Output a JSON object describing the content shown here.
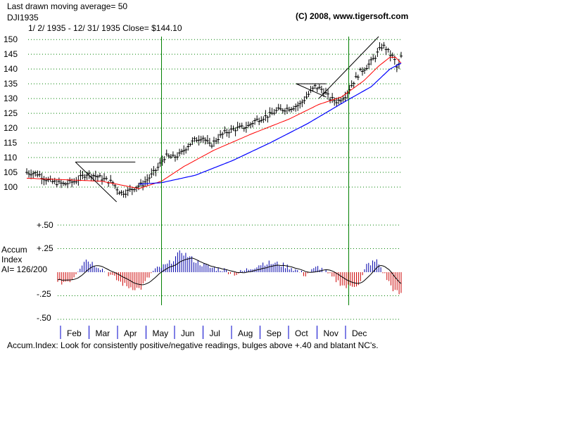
{
  "header": {
    "line1": "Last drawn moving average= 50",
    "line2": "DJI1935",
    "line3": "1/ 2/ 1935 -  12/ 31/ 1935   Close= $144.10",
    "copyright": "(C) 2008, www.tigersoft.com"
  },
  "accum_panel": {
    "label_line1": "Accum",
    "label_line2": "Index",
    "label_line3": "AI= 126/200",
    "y_ticks": [
      "+.50",
      "+.25",
      "-.25",
      "-.50"
    ]
  },
  "footer_note": "Accum.Index: Look for consistently positive/negative readings, bulges above +.40 and blatant NC's.",
  "colors": {
    "bars": "#000000",
    "ma_fast": "#ff0000",
    "ma_slow": "#0000ff",
    "signal_line": "#008000",
    "grid": "#008000",
    "ai_positive": "#0000aa",
    "ai_negative": "#cc0000"
  },
  "chart_data": [
    {
      "type": "ohlc",
      "title": "DJI1935",
      "x_months": [
        "Feb",
        "Mar",
        "Apr",
        "May",
        "Jun",
        "Jul",
        "Aug",
        "Sep",
        "Oct",
        "Nov",
        "Dec"
      ],
      "y_ticks": [
        100,
        105,
        110,
        115,
        120,
        125,
        130,
        135,
        140,
        145,
        150
      ],
      "ylim": [
        95,
        151
      ],
      "grid": true,
      "close": 144.1,
      "price_path": [
        [
          0,
          105
        ],
        [
          0.03,
          104.5
        ],
        [
          0.06,
          102
        ],
        [
          0.1,
          101
        ],
        [
          0.13,
          102
        ],
        [
          0.16,
          104.5
        ],
        [
          0.18,
          104
        ],
        [
          0.21,
          102.5
        ],
        [
          0.23,
          101.5
        ],
        [
          0.25,
          98
        ],
        [
          0.27,
          98.5
        ],
        [
          0.29,
          100
        ],
        [
          0.31,
          101
        ],
        [
          0.33,
          103.5
        ],
        [
          0.35,
          106.5
        ],
        [
          0.37,
          110.5
        ],
        [
          0.39,
          110
        ],
        [
          0.41,
          111
        ],
        [
          0.43,
          114
        ],
        [
          0.45,
          116
        ],
        [
          0.47,
          117
        ],
        [
          0.49,
          114
        ],
        [
          0.51,
          116.5
        ],
        [
          0.53,
          118.5
        ],
        [
          0.55,
          119.5
        ],
        [
          0.57,
          120
        ],
        [
          0.59,
          120.5
        ],
        [
          0.61,
          122.5
        ],
        [
          0.63,
          123.5
        ],
        [
          0.65,
          124.5
        ],
        [
          0.67,
          126
        ],
        [
          0.69,
          126.5
        ],
        [
          0.71,
          127
        ],
        [
          0.73,
          128
        ],
        [
          0.75,
          131
        ],
        [
          0.77,
          134
        ],
        [
          0.79,
          133
        ],
        [
          0.81,
          130
        ],
        [
          0.83,
          129
        ],
        [
          0.85,
          131
        ],
        [
          0.87,
          135
        ],
        [
          0.89,
          139
        ],
        [
          0.91,
          141
        ],
        [
          0.93,
          144
        ],
        [
          0.95,
          148
        ],
        [
          0.96,
          147
        ],
        [
          0.97,
          145
        ],
        [
          0.98,
          144
        ],
        [
          0.985,
          142
        ],
        [
          0.99,
          140
        ],
        [
          0.995,
          141.5
        ],
        [
          1.0,
          144.1
        ]
      ],
      "ma_fast_path": [
        [
          0,
          103
        ],
        [
          0.1,
          102.5
        ],
        [
          0.2,
          102
        ],
        [
          0.3,
          99.5
        ],
        [
          0.36,
          102
        ],
        [
          0.42,
          107
        ],
        [
          0.5,
          112.5
        ],
        [
          0.6,
          118
        ],
        [
          0.7,
          123
        ],
        [
          0.78,
          128
        ],
        [
          0.84,
          130.5
        ],
        [
          0.9,
          136
        ],
        [
          0.94,
          141
        ],
        [
          0.97,
          144
        ],
        [
          0.985,
          144
        ],
        [
          1.0,
          142
        ]
      ],
      "ma_slow_path": [
        [
          0.3,
          101
        ],
        [
          0.36,
          101.5
        ],
        [
          0.45,
          104
        ],
        [
          0.55,
          109
        ],
        [
          0.65,
          115
        ],
        [
          0.75,
          121.5
        ],
        [
          0.85,
          129
        ],
        [
          0.92,
          134
        ],
        [
          0.97,
          140
        ],
        [
          1.0,
          142
        ]
      ],
      "signal_lines_at": [
        0.36,
        0.86
      ]
    },
    {
      "type": "bar",
      "title": "Accum Index",
      "ylim": [
        -0.5,
        0.5
      ],
      "y_ticks": [
        0.5,
        0.25,
        -0.25,
        -0.5
      ],
      "ai_segments": [
        [
          0.0,
          -0.12
        ],
        [
          0.04,
          -0.08
        ],
        [
          0.08,
          0.14
        ],
        [
          0.12,
          0.06
        ],
        [
          0.16,
          -0.05
        ],
        [
          0.2,
          -0.15
        ],
        [
          0.24,
          -0.18
        ],
        [
          0.28,
          0.02
        ],
        [
          0.32,
          0.08
        ],
        [
          0.36,
          0.22
        ],
        [
          0.4,
          0.12
        ],
        [
          0.44,
          0.05
        ],
        [
          0.48,
          0.03
        ],
        [
          0.52,
          -0.02
        ],
        [
          0.56,
          0.04
        ],
        [
          0.6,
          0.1
        ],
        [
          0.64,
          0.09
        ],
        [
          0.68,
          0.05
        ],
        [
          0.72,
          -0.03
        ],
        [
          0.76,
          0.06
        ],
        [
          0.8,
          -0.06
        ],
        [
          0.84,
          -0.16
        ],
        [
          0.88,
          -0.12
        ],
        [
          0.9,
          0.08
        ],
        [
          0.93,
          0.12
        ],
        [
          0.96,
          -0.08
        ],
        [
          0.98,
          -0.2
        ],
        [
          1.0,
          -0.24
        ]
      ]
    }
  ]
}
